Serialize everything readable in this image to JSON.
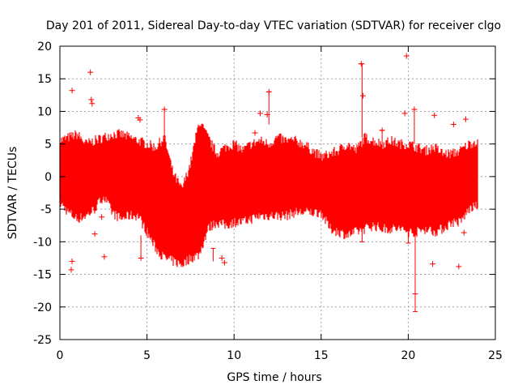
{
  "chart_data": {
    "type": "scatter",
    "title": "Day 201 of 2011, Sidereal Day-to-day VTEC variation (SDTVAR) for receiver clgo",
    "xlabel": "GPS time / hours",
    "ylabel": "SDTVAR / TECUs",
    "xlim": [
      0,
      25
    ],
    "ylim": [
      -25,
      20
    ],
    "xticks": [
      0,
      5,
      10,
      15,
      20,
      25
    ],
    "yticks": [
      -25,
      -20,
      -15,
      -10,
      -5,
      0,
      5,
      10,
      15,
      20
    ],
    "grid": true,
    "series": [
      {
        "name": "SDTVAR",
        "color": "#ff0000",
        "marker": "plus",
        "envelope": {
          "x": [
            0.0,
            0.5,
            1.0,
            1.5,
            2.0,
            2.5,
            3.0,
            3.5,
            4.0,
            4.5,
            5.0,
            5.5,
            6.0,
            6.5,
            7.0,
            7.5,
            8.0,
            8.5,
            9.0,
            9.5,
            10.0,
            10.5,
            11.0,
            11.5,
            12.0,
            12.5,
            13.0,
            13.5,
            14.0,
            14.5,
            15.0,
            15.5,
            16.0,
            16.5,
            17.0,
            17.5,
            18.0,
            18.5,
            19.0,
            19.5,
            20.0,
            20.5,
            21.0,
            21.5,
            22.0,
            22.5,
            23.0,
            23.5,
            24.0
          ],
          "upper": [
            5.5,
            6.0,
            6.5,
            5.0,
            5.5,
            6.0,
            6.5,
            6.5,
            6.0,
            5.5,
            5.0,
            4.5,
            6.0,
            0.5,
            -2.0,
            2.0,
            8.5,
            6.0,
            3.5,
            4.5,
            5.0,
            4.0,
            5.0,
            5.5,
            5.0,
            6.0,
            5.5,
            5.5,
            5.0,
            4.0,
            3.0,
            3.5,
            4.0,
            5.0,
            4.0,
            6.0,
            5.5,
            5.0,
            5.5,
            5.0,
            5.0,
            4.5,
            4.0,
            4.5,
            3.5,
            3.5,
            4.0,
            5.0,
            5.5
          ],
          "lower": [
            -4.0,
            -5.5,
            -6.5,
            -6.0,
            -5.0,
            -3.0,
            -5.5,
            -6.5,
            -6.0,
            -6.0,
            -8.5,
            -11.0,
            -12.5,
            -13.0,
            -13.5,
            -12.5,
            -12.0,
            -8.0,
            -7.0,
            -7.5,
            -7.0,
            -7.0,
            -6.5,
            -6.0,
            -6.0,
            -6.0,
            -6.0,
            -5.5,
            -5.5,
            -5.5,
            -5.5,
            -8.0,
            -8.5,
            -9.0,
            -8.5,
            -8.0,
            -7.5,
            -8.0,
            -8.0,
            -8.0,
            -8.5,
            -8.5,
            -8.0,
            -8.5,
            -8.0,
            -7.0,
            -7.0,
            -5.0,
            -4.5
          ]
        },
        "outliers": [
          [
            0.7,
            13.2
          ],
          [
            1.75,
            16.0
          ],
          [
            1.8,
            11.8
          ],
          [
            1.85,
            11.2
          ],
          [
            0.7,
            -13.0
          ],
          [
            0.65,
            -14.3
          ],
          [
            2.0,
            -8.8
          ],
          [
            2.55,
            -12.3
          ],
          [
            2.4,
            -6.2
          ],
          [
            4.5,
            9.0
          ],
          [
            4.6,
            8.7
          ],
          [
            4.65,
            -12.5
          ],
          [
            6.0,
            10.3
          ],
          [
            9.3,
            -12.5
          ],
          [
            9.45,
            -13.2
          ],
          [
            11.2,
            6.7
          ],
          [
            11.5,
            9.7
          ],
          [
            11.9,
            9.5
          ],
          [
            12.0,
            13.0
          ],
          [
            17.3,
            17.3
          ],
          [
            17.4,
            12.4
          ],
          [
            18.5,
            7.1
          ],
          [
            19.9,
            18.5
          ],
          [
            19.8,
            9.7
          ],
          [
            20.35,
            10.3
          ],
          [
            20.4,
            -18.0
          ],
          [
            21.5,
            9.4
          ],
          [
            21.4,
            -13.4
          ],
          [
            22.6,
            8.0
          ],
          [
            22.9,
            -13.8
          ],
          [
            23.3,
            8.8
          ],
          [
            23.2,
            -8.6
          ]
        ],
        "spikes": [
          [
            6.0,
            6.0,
            10.3
          ],
          [
            8.8,
            -13.0,
            -11.0
          ],
          [
            12.0,
            8.0,
            13.0
          ],
          [
            17.35,
            6.0,
            17.3
          ],
          [
            17.35,
            -8.0,
            -10.0
          ],
          [
            20.35,
            5.0,
            10.3
          ],
          [
            20.4,
            -8.0,
            -20.7
          ],
          [
            20.0,
            -8.5,
            -10.2
          ],
          [
            4.65,
            -9.0,
            -12.5
          ],
          [
            18.5,
            4.5,
            7.1
          ]
        ]
      }
    ]
  }
}
